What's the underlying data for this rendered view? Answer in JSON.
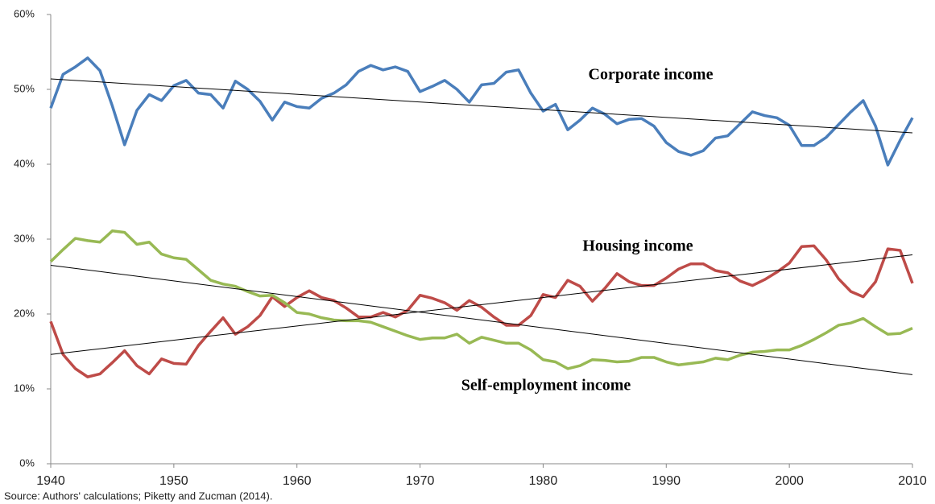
{
  "chart_data": {
    "type": "line",
    "source": "Source: Authors' calculations; Piketty and Zucman (2014).",
    "x": [
      1940,
      1941,
      1942,
      1943,
      1944,
      1945,
      1946,
      1947,
      1948,
      1949,
      1950,
      1951,
      1952,
      1953,
      1954,
      1955,
      1956,
      1957,
      1958,
      1959,
      1960,
      1961,
      1962,
      1963,
      1964,
      1965,
      1966,
      1967,
      1968,
      1969,
      1970,
      1971,
      1972,
      1973,
      1974,
      1975,
      1976,
      1977,
      1978,
      1979,
      1980,
      1981,
      1982,
      1983,
      1984,
      1985,
      1986,
      1987,
      1988,
      1989,
      1990,
      1991,
      1992,
      1993,
      1994,
      1995,
      1996,
      1997,
      1998,
      1999,
      2000,
      2001,
      2002,
      2003,
      2004,
      2005,
      2006,
      2007,
      2008,
      2009,
      2010
    ],
    "series": [
      {
        "name": "Corporate income",
        "color": "#4a7ebb",
        "values": [
          47.5,
          52,
          53,
          54.2,
          52.5,
          47.8,
          42.6,
          47.2,
          49.3,
          48.5,
          50.5,
          51.2,
          49.5,
          49.3,
          47.5,
          51.1,
          50,
          48.4,
          45.9,
          48.3,
          47.7,
          47.5,
          48.8,
          49.5,
          50.6,
          52.4,
          53.2,
          52.6,
          53,
          52.4,
          49.7,
          50.4,
          51.2,
          50,
          48.3,
          50.6,
          50.8,
          52.3,
          52.6,
          49.5,
          47.1,
          48,
          44.6,
          45.9,
          47.5,
          46.7,
          45.4,
          46,
          46.1,
          45.1,
          42.9,
          41.7,
          41.2,
          41.8,
          43.5,
          43.8,
          45.4,
          47,
          46.5,
          46.2,
          45.2,
          42.5,
          42.5,
          43.6,
          45.3,
          47,
          48.5,
          45.1,
          39.9,
          43.2,
          46.2
        ],
        "trend": {
          "x": [
            1940,
            2010
          ],
          "values": [
            51.4,
            44.2
          ],
          "color": "#000000"
        }
      },
      {
        "name": "Housing income",
        "color": "#be4b48",
        "values": [
          19,
          14.6,
          12.7,
          11.6,
          12,
          13.5,
          15.1,
          13.1,
          12,
          14,
          13.4,
          13.3,
          15.8,
          17.7,
          19.5,
          17.3,
          18.3,
          19.8,
          22.3,
          21,
          22.2,
          23.1,
          22.2,
          21.8,
          20.8,
          19.6,
          19.6,
          20.2,
          19.6,
          20.5,
          22.5,
          22.1,
          21.5,
          20.5,
          21.8,
          20.9,
          19.6,
          18.5,
          18.5,
          19.8,
          22.6,
          22.2,
          24.5,
          23.7,
          21.7,
          23.4,
          25.4,
          24.3,
          23.8,
          23.8,
          24.8,
          26,
          26.7,
          26.7,
          25.8,
          25.5,
          24.4,
          23.8,
          24.6,
          25.6,
          26.8,
          29,
          29.1,
          27.2,
          24.7,
          23,
          22.3,
          24.3,
          28.7,
          28.5,
          24.1
        ],
        "trend": {
          "x": [
            1940,
            2010
          ],
          "values": [
            14.6,
            27.9
          ],
          "color": "#000000"
        }
      },
      {
        "name": "Self-employment income",
        "color": "#98b954",
        "values": [
          27,
          28.6,
          30.1,
          29.8,
          29.6,
          31.1,
          30.9,
          29.3,
          29.6,
          28,
          27.5,
          27.3,
          25.9,
          24.5,
          24,
          23.7,
          23,
          22.4,
          22.5,
          21.5,
          20.2,
          20,
          19.5,
          19.2,
          19.1,
          19.1,
          18.9,
          18.3,
          17.7,
          17.1,
          16.6,
          16.8,
          16.8,
          17.3,
          16.1,
          16.9,
          16.5,
          16.1,
          16.1,
          15.2,
          13.9,
          13.6,
          12.7,
          13.1,
          13.9,
          13.8,
          13.6,
          13.7,
          14.2,
          14.2,
          13.6,
          13.2,
          13.4,
          13.6,
          14.1,
          13.9,
          14.5,
          14.9,
          15,
          15.2,
          15.2,
          15.8,
          16.6,
          17.5,
          18.5,
          18.8,
          19.4,
          18.3,
          17.3,
          17.4,
          18.1
        ],
        "trend": {
          "x": [
            1940,
            2010
          ],
          "values": [
            26.5,
            11.9
          ],
          "color": "#000000"
        }
      }
    ],
    "xlim": [
      1940,
      2010
    ],
    "xticks": [
      1940,
      1950,
      1960,
      1970,
      1980,
      1990,
      2000,
      2010
    ],
    "ylim": [
      0,
      60
    ],
    "yticks": [
      {
        "value": 0,
        "label": "0%"
      },
      {
        "value": 10,
        "label": "10%"
      },
      {
        "value": 20,
        "label": "20%"
      },
      {
        "value": 30,
        "label": "30%"
      },
      {
        "value": 40,
        "label": "40%"
      },
      {
        "value": 50,
        "label": "50%"
      },
      {
        "value": 60,
        "label": "60%"
      }
    ],
    "grid": false
  }
}
